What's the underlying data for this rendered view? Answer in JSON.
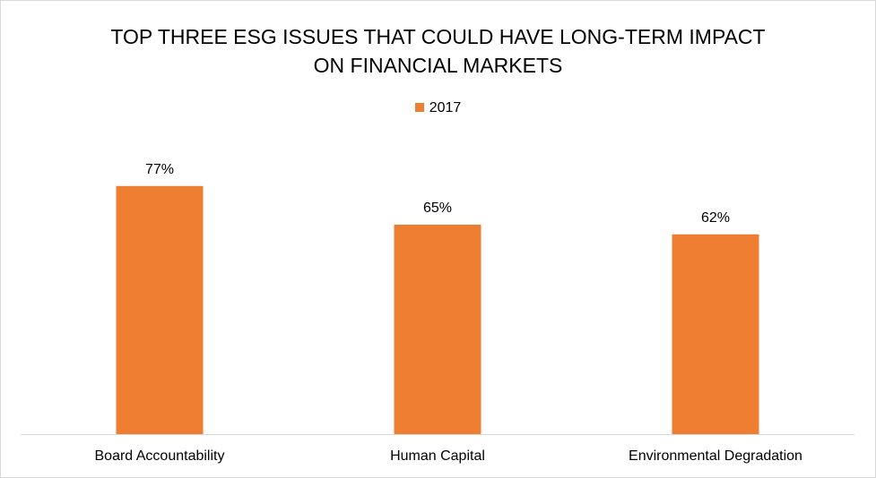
{
  "chart_data": {
    "type": "bar",
    "title_lines": [
      "TOP THREE ESG ISSUES THAT COULD HAVE LONG-TERM IMPACT",
      "ON FINANCIAL MARKETS"
    ],
    "categories": [
      "Board Accountability",
      "Human Capital",
      "Environmental Degradation"
    ],
    "series": [
      {
        "name": "2017",
        "values": [
          77,
          65,
          62
        ],
        "labels": [
          "77%",
          "65%",
          "62%"
        ],
        "color": "#ed7d31"
      }
    ],
    "xlabel": "",
    "ylabel": "",
    "ylim": [
      0,
      100
    ],
    "grid": false,
    "legend": "top-center"
  }
}
